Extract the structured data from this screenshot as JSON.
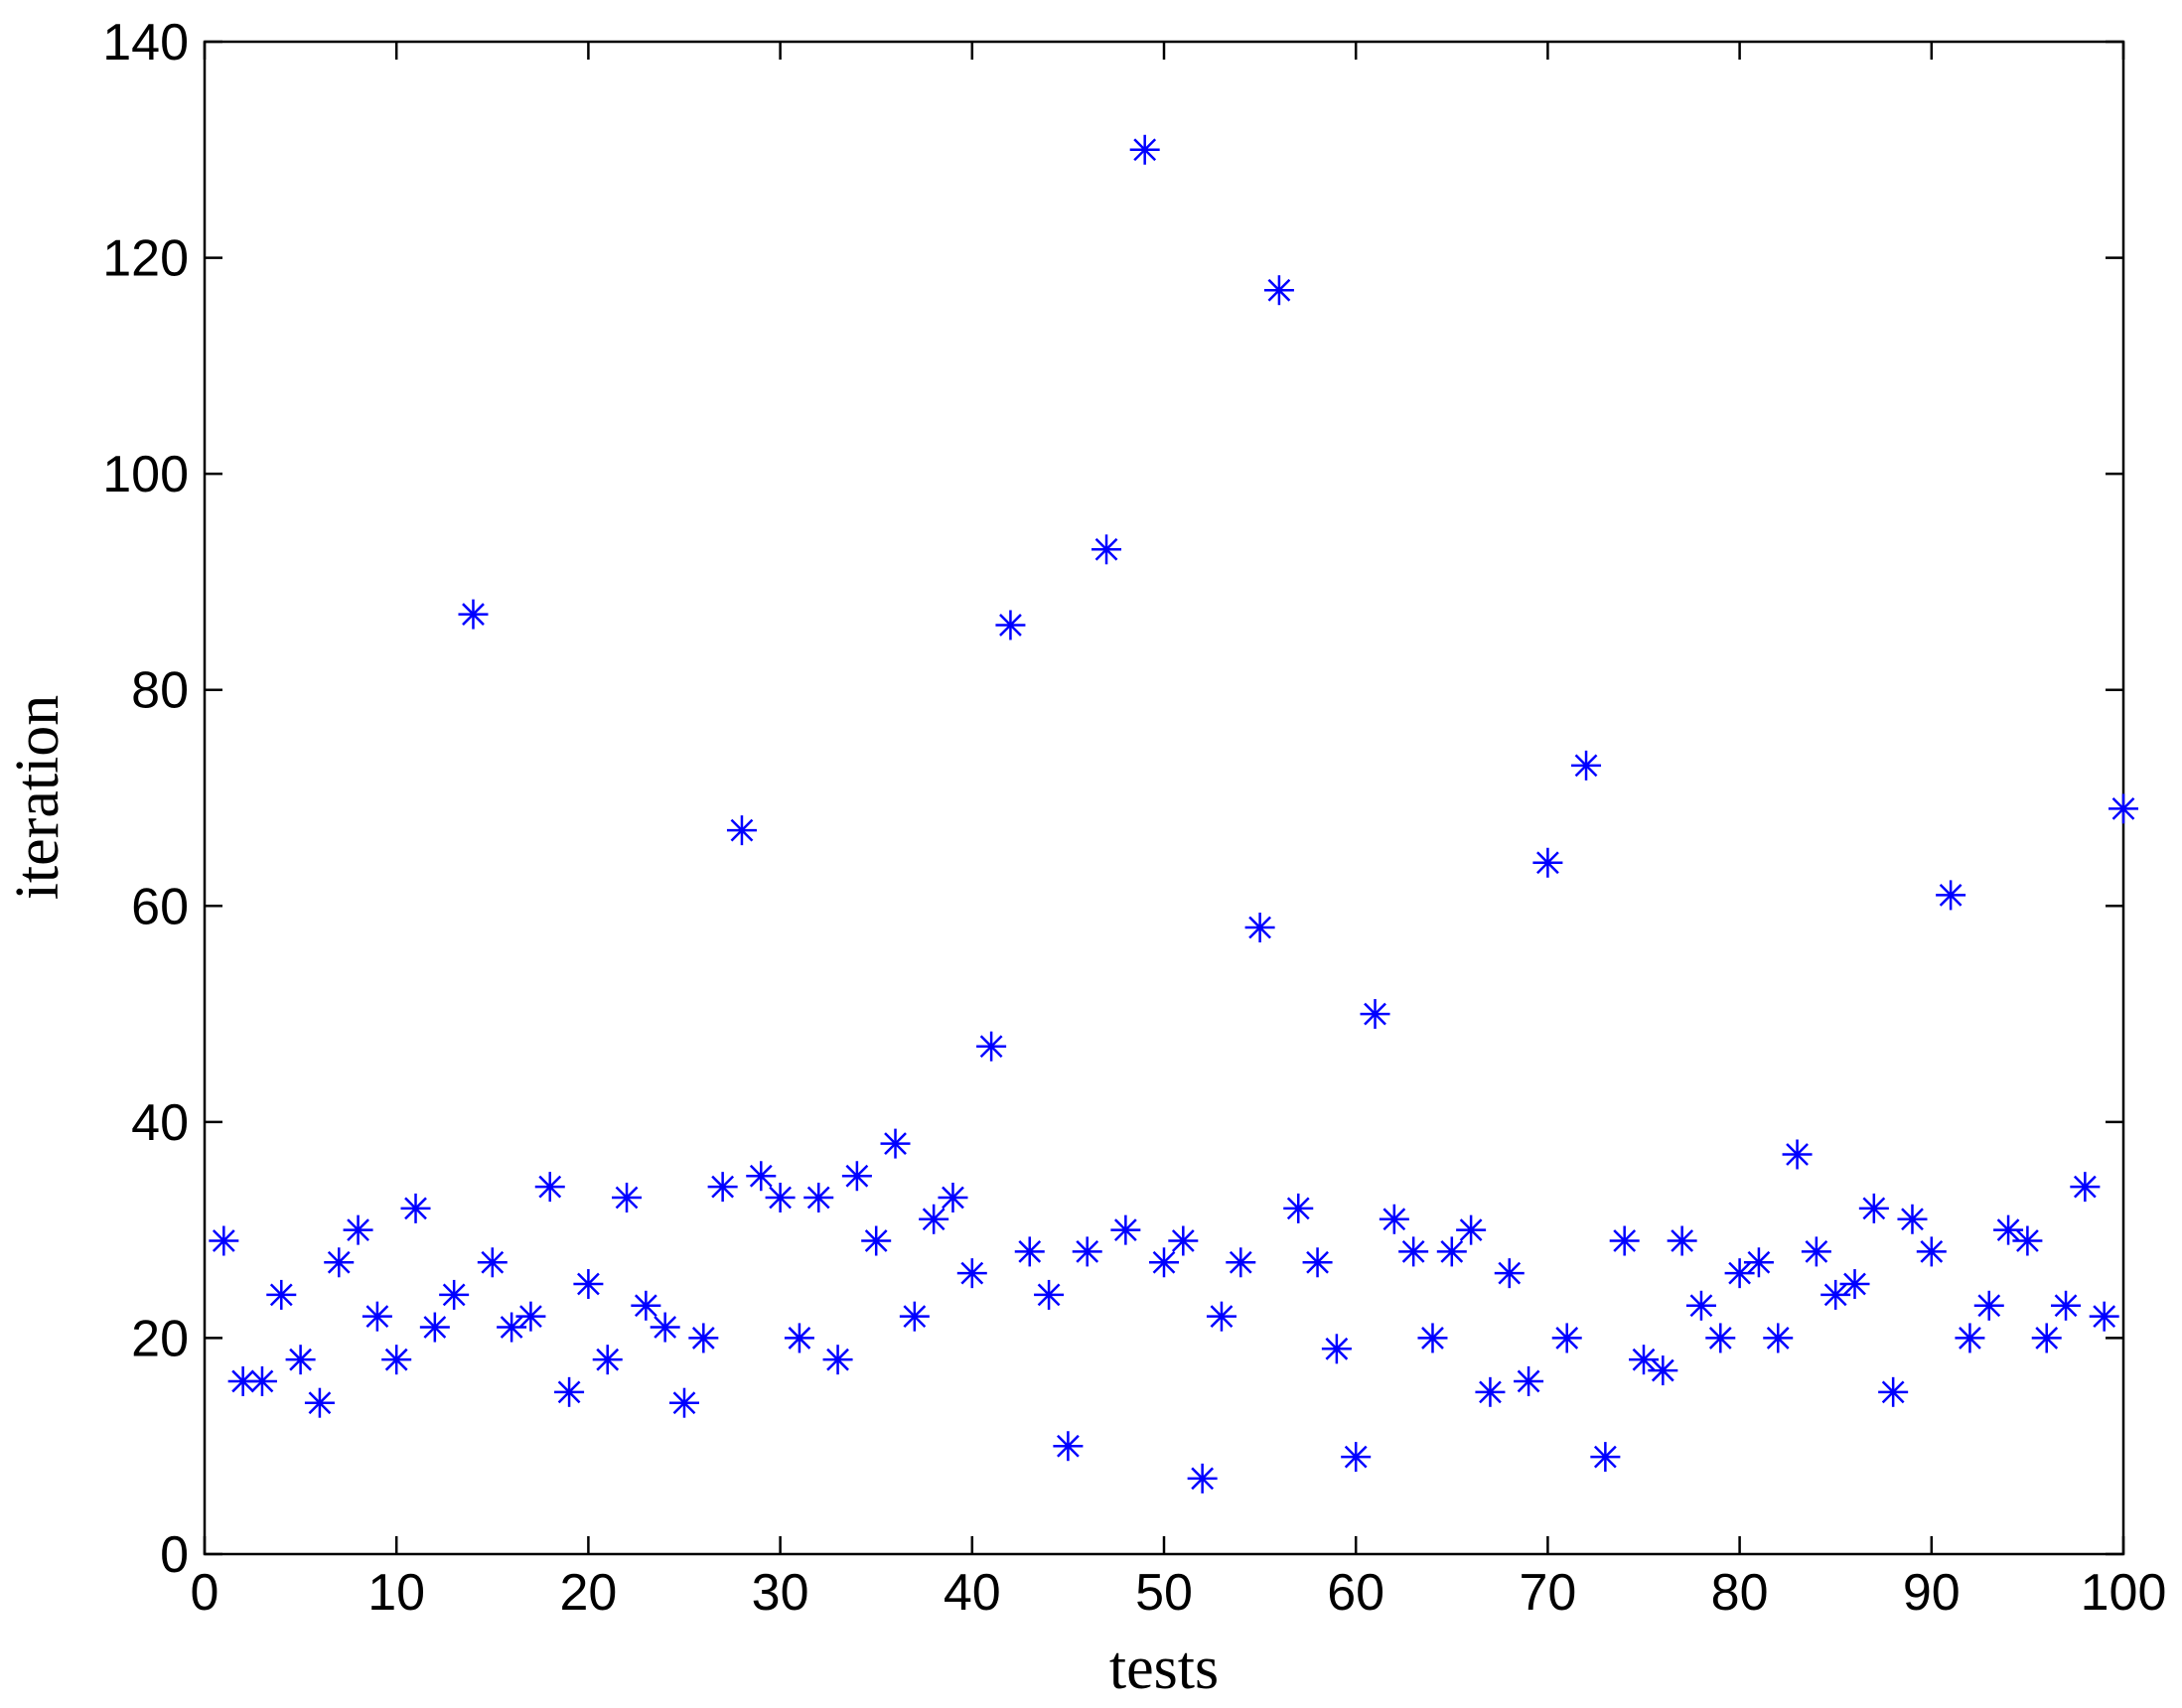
{
  "chart_data": {
    "type": "scatter",
    "x_label": "tests",
    "y_label": "iteration",
    "x": [
      1,
      2,
      3,
      4,
      5,
      6,
      7,
      8,
      9,
      10,
      11,
      12,
      13,
      14,
      15,
      16,
      17,
      18,
      19,
      20,
      21,
      22,
      23,
      24,
      25,
      26,
      27,
      28,
      29,
      30,
      31,
      32,
      33,
      34,
      35,
      36,
      37,
      38,
      39,
      40,
      41,
      42,
      43,
      44,
      45,
      46,
      47,
      48,
      49,
      50,
      51,
      52,
      53,
      54,
      55,
      56,
      57,
      58,
      59,
      60,
      61,
      62,
      63,
      64,
      65,
      66,
      67,
      68,
      69,
      70,
      71,
      72,
      73,
      74,
      75,
      76,
      77,
      78,
      79,
      80,
      81,
      82,
      83,
      84,
      85,
      86,
      87,
      88,
      89,
      90,
      91,
      92,
      93,
      94,
      95,
      96,
      97,
      98,
      99,
      100
    ],
    "values": [
      29,
      16,
      16,
      24,
      18,
      14,
      27,
      30,
      22,
      18,
      32,
      21,
      24,
      87,
      27,
      21,
      22,
      34,
      15,
      25,
      18,
      33,
      23,
      21,
      14,
      20,
      34,
      67,
      35,
      33,
      20,
      33,
      18,
      35,
      29,
      38,
      22,
      31,
      33,
      26,
      47,
      86,
      28,
      24,
      10,
      28,
      93,
      30,
      130,
      27,
      29,
      7,
      22,
      27,
      58,
      117,
      32,
      27,
      19,
      9,
      50,
      31,
      28,
      20,
      28,
      30,
      15,
      26,
      16,
      64,
      20,
      73,
      9,
      29,
      18,
      17,
      29,
      23,
      20,
      26,
      27,
      20,
      37,
      28,
      24,
      25,
      32,
      15,
      31,
      28,
      61,
      20,
      23,
      30,
      29,
      20,
      23,
      34,
      22,
      69
    ],
    "color": "#0000ff",
    "xlim": [
      0,
      100
    ],
    "xticks": [
      0,
      10,
      20,
      30,
      40,
      50,
      60,
      70,
      80,
      90,
      100
    ],
    "ylim": [
      0,
      140
    ],
    "yticks": [
      0,
      20,
      40,
      60,
      80,
      100,
      120,
      140
    ],
    "grid": false
  }
}
